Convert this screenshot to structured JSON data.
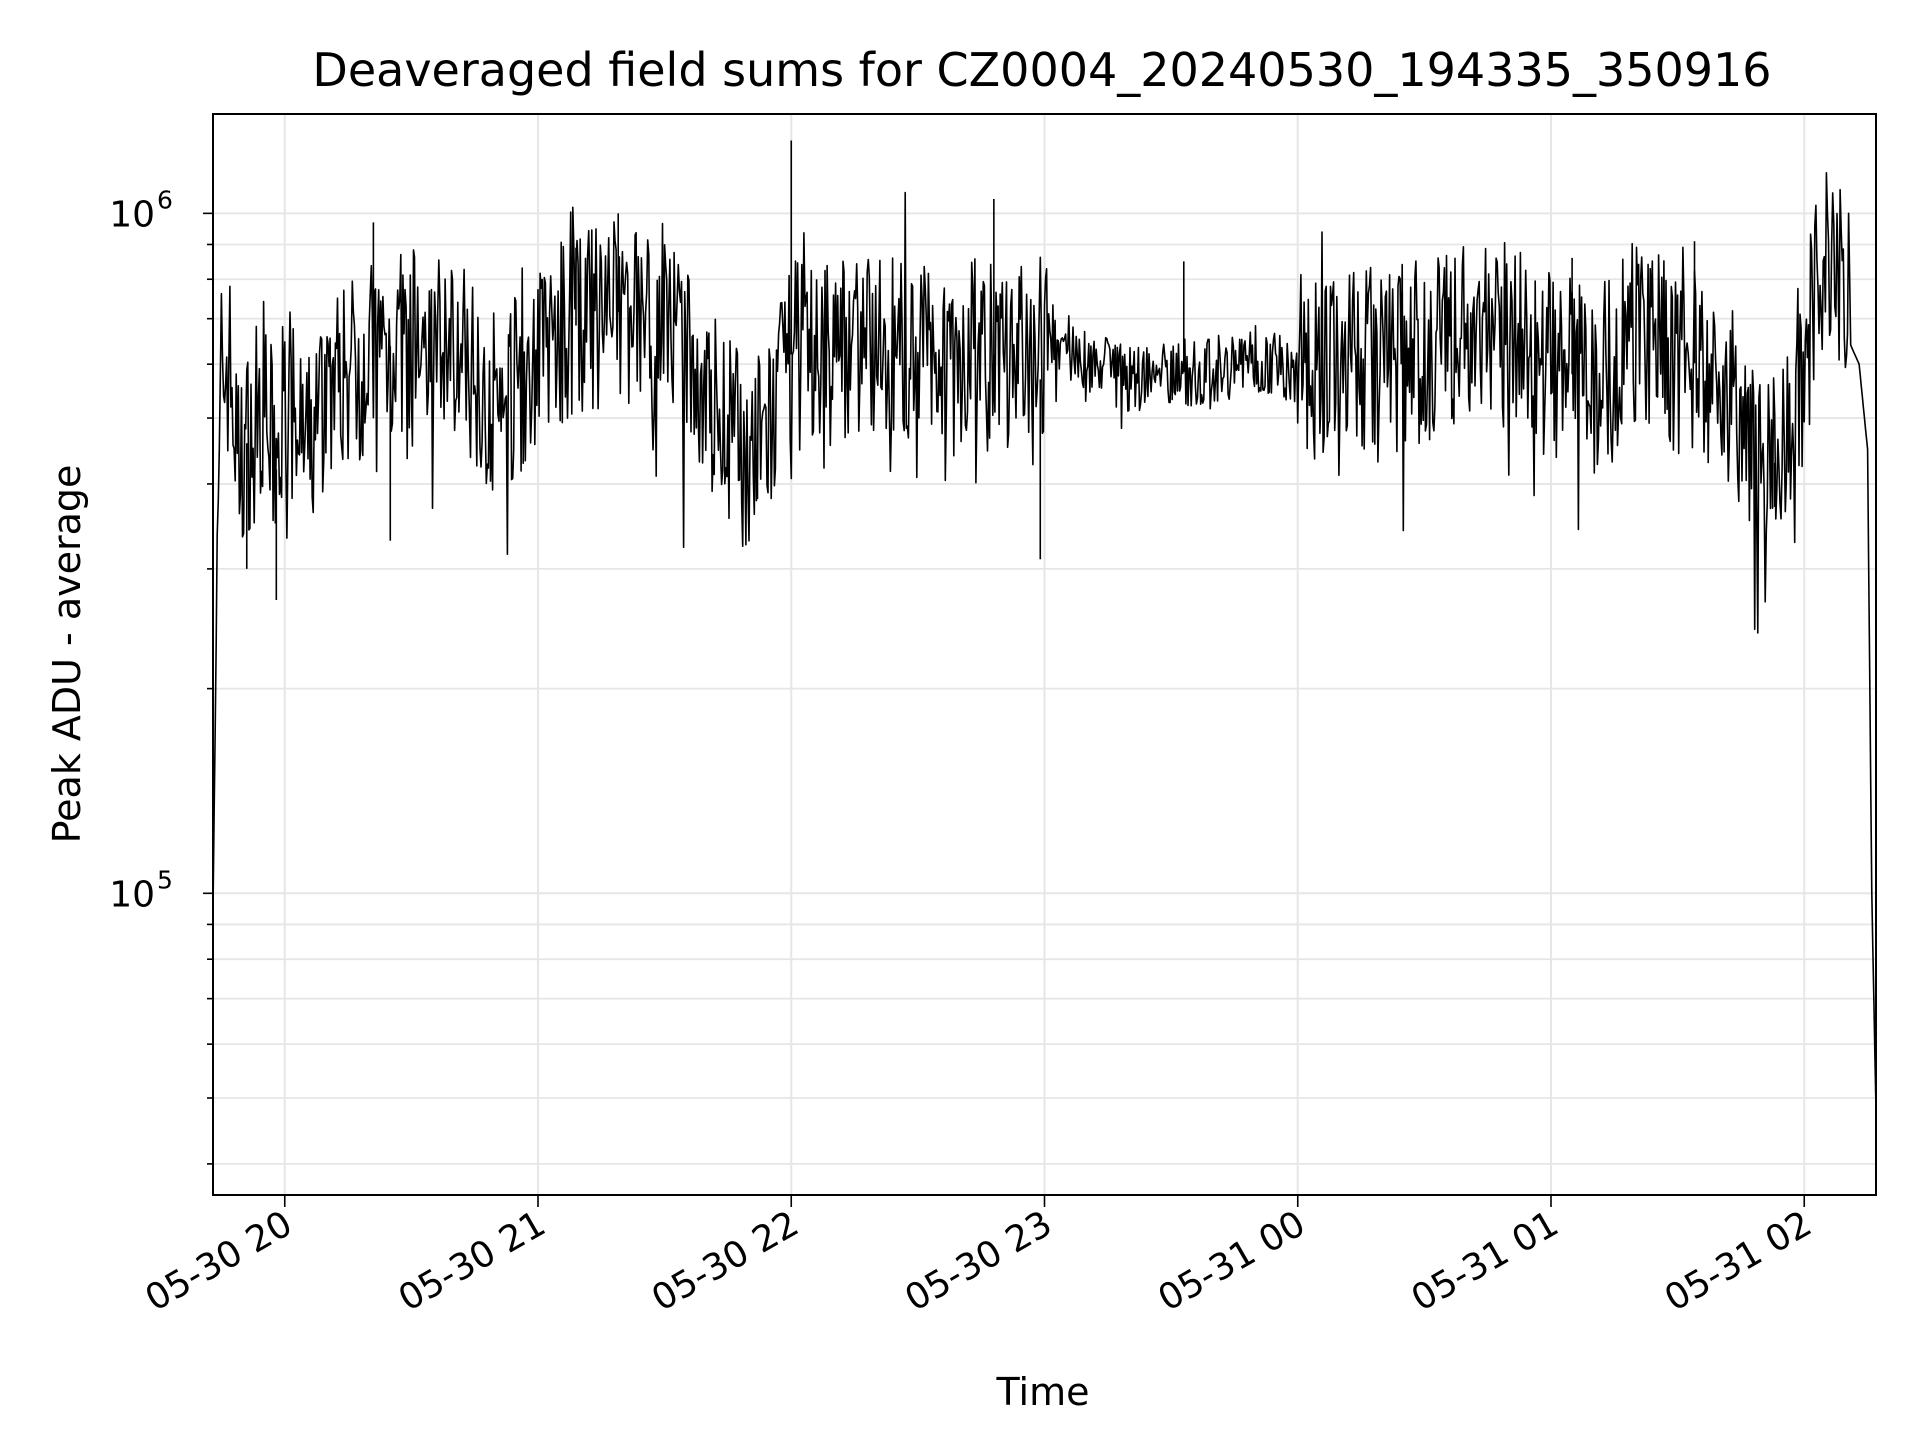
{
  "chart_data": {
    "type": "line",
    "title": "Deaveraged field sums for CZ0004_20240530_194335_350916",
    "xlabel": "Time",
    "ylabel": "Peak ADU - average",
    "yscale": "log",
    "ylim": [
      36000,
      1400000
    ],
    "xlim": [
      "2024-05-30 19:43",
      "2024-05-31 02:17"
    ],
    "x_ticks": [
      "05-30 20",
      "05-30 21",
      "05-30 22",
      "05-30 23",
      "05-31 00",
      "05-31 01",
      "05-31 02"
    ],
    "y_ticks": [
      {
        "base": "10",
        "exp": "5",
        "value": 100000
      },
      {
        "base": "10",
        "exp": "6",
        "value": 1000000
      }
    ],
    "grid": true,
    "line_color": "#000000",
    "series": [
      {
        "x": [
          "2024-05-30 19:43",
          "2024-05-30 19:45",
          "2024-05-30 19:47",
          "2024-05-30 19:49",
          "2024-05-30 19:52",
          "2024-05-30 19:55",
          "2024-05-30 19:58",
          "2024-05-30 20:00",
          "2024-05-30 20:03",
          "2024-05-30 20:06",
          "2024-05-30 20:10",
          "2024-05-30 20:14",
          "2024-05-30 20:18",
          "2024-05-30 20:22",
          "2024-05-30 20:26",
          "2024-05-30 20:30",
          "2024-05-30 20:35",
          "2024-05-30 20:40",
          "2024-05-30 20:45",
          "2024-05-30 20:50",
          "2024-05-30 20:55",
          "2024-05-30 21:00",
          "2024-05-30 21:05",
          "2024-05-30 21:10",
          "2024-05-30 21:15",
          "2024-05-30 21:20",
          "2024-05-30 21:25",
          "2024-05-30 21:30",
          "2024-05-30 21:35",
          "2024-05-30 21:40",
          "2024-05-30 21:45",
          "2024-05-30 21:50",
          "2024-05-30 21:53",
          "2024-05-30 21:56",
          "2024-05-30 22:00",
          "2024-05-30 22:05",
          "2024-05-30 22:10",
          "2024-05-30 22:15",
          "2024-05-30 22:20",
          "2024-05-30 22:25",
          "2024-05-30 22:30",
          "2024-05-30 22:35",
          "2024-05-30 22:40",
          "2024-05-30 22:45",
          "2024-05-30 22:50",
          "2024-05-30 22:55",
          "2024-05-30 22:59",
          "2024-05-30 23:01",
          "2024-05-30 23:05",
          "2024-05-30 23:10",
          "2024-05-30 23:15",
          "2024-05-30 23:20",
          "2024-05-30 23:25",
          "2024-05-30 23:30",
          "2024-05-30 23:35",
          "2024-05-30 23:40",
          "2024-05-30 23:45",
          "2024-05-30 23:50",
          "2024-05-30 23:55",
          "2024-05-31 00:00",
          "2024-05-31 00:05",
          "2024-05-31 00:10",
          "2024-05-31 00:15",
          "2024-05-31 00:20",
          "2024-05-31 00:25",
          "2024-05-31 00:30",
          "2024-05-31 00:35",
          "2024-05-31 00:40",
          "2024-05-31 00:45",
          "2024-05-31 00:50",
          "2024-05-31 00:55",
          "2024-05-31 01:00",
          "2024-05-31 01:05",
          "2024-05-31 01:10",
          "2024-05-31 01:15",
          "2024-05-31 01:20",
          "2024-05-31 01:25",
          "2024-05-31 01:30",
          "2024-05-31 01:35",
          "2024-05-31 01:40",
          "2024-05-31 01:45",
          "2024-05-31 01:48",
          "2024-05-31 01:52",
          "2024-05-31 01:56",
          "2024-05-31 02:00",
          "2024-05-31 02:03",
          "2024-05-31 02:06",
          "2024-05-31 02:09",
          "2024-05-31 02:11",
          "2024-05-31 02:13",
          "2024-05-31 02:15",
          "2024-05-31 02:16",
          "2024-05-31 02:17"
        ],
        "y": [
          130000,
          580000,
          600000,
          420000,
          480000,
          540000,
          420000,
          560000,
          470000,
          450000,
          560000,
          580000,
          600000,
          630000,
          640000,
          650000,
          650000,
          640000,
          590000,
          520000,
          560000,
          620000,
          660000,
          690000,
          700000,
          720000,
          710000,
          690000,
          600000,
          540000,
          490000,
          430000,
          460000,
          500000,
          620000,
          610000,
          630000,
          650000,
          640000,
          630000,
          620000,
          640000,
          630000,
          620000,
          600000,
          610000,
          570000,
          660000,
          640000,
          610000,
          590000,
          570000,
          580000,
          590000,
          580000,
          590000,
          600000,
          610000,
          600000,
          590000,
          600000,
          610000,
          620000,
          600000,
          610000,
          630000,
          640000,
          650000,
          670000,
          660000,
          620000,
          600000,
          580000,
          570000,
          620000,
          680000,
          640000,
          610000,
          600000,
          560000,
          500000,
          450000,
          420000,
          460000,
          600000,
          780000,
          880000,
          800000,
          640000,
          600000,
          450000,
          100000,
          48000
        ]
      }
    ],
    "spikes": [
      {
        "x": "2024-05-30 20:21",
        "y": 970000
      },
      {
        "x": "2024-05-30 21:09",
        "y": 890000
      },
      {
        "x": "2024-05-30 21:19",
        "y": 1000000
      },
      {
        "x": "2024-05-30 22:00",
        "y": 1280000
      },
      {
        "x": "2024-05-30 22:48",
        "y": 1050000
      },
      {
        "x": "2024-05-30 23:33",
        "y": 850000
      },
      {
        "x": "2024-05-31 01:05",
        "y": 860000
      },
      {
        "x": "2024-05-31 01:34",
        "y": 910000
      },
      {
        "x": "2024-05-30 19:51",
        "y": 300000
      },
      {
        "x": "2024-05-30 19:58",
        "y": 270000
      },
      {
        "x": "2024-05-30 20:25",
        "y": 330000
      },
      {
        "x": "2024-05-30 22:59",
        "y": 310000
      },
      {
        "x": "2024-05-30 21:52",
        "y": 380000
      },
      {
        "x": "2024-05-31 01:53",
        "y": 370000
      }
    ]
  }
}
